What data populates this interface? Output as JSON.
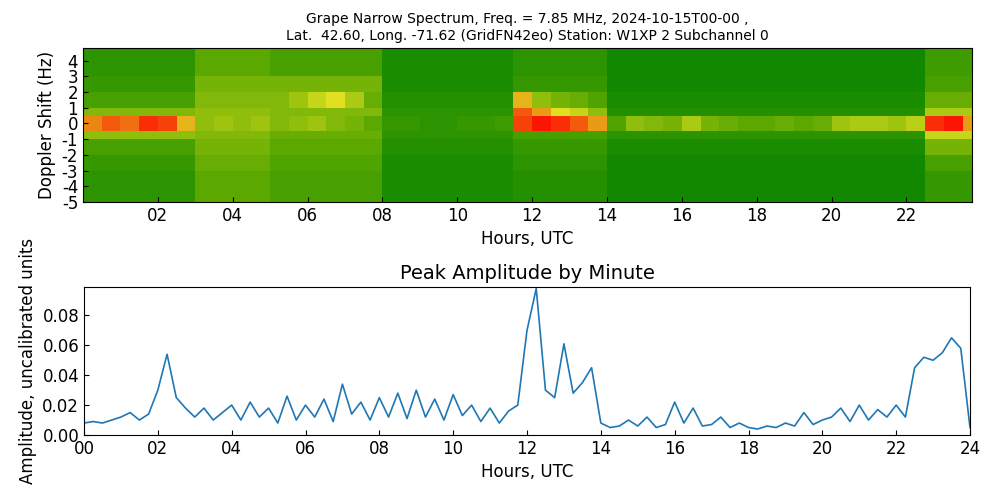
{
  "chart_data": [
    {
      "type": "heatmap",
      "title": "Grape Narrow Spectrum, Freq. = 7.85 MHz, 2024-10-15T00-00 ,\nLat.  42.60, Long. -71.62 (GridFN42eo) Station: W1XP 2 Subchannel 0",
      "x_label": "Hours, UTC",
      "y_label": "Doppler Shift (Hz)",
      "x_edges": [
        0,
        0.5,
        1,
        1.5,
        2,
        2.5,
        3,
        3.5,
        4,
        4.5,
        5,
        5.5,
        6,
        6.5,
        7,
        7.5,
        8,
        8.5,
        9,
        9.5,
        10,
        10.5,
        11,
        11.5,
        12,
        12.5,
        13,
        13.5,
        14,
        14.5,
        15,
        15.5,
        16,
        16.5,
        17,
        17.5,
        18,
        18.5,
        19,
        19.5,
        20,
        20.5,
        21,
        21.5,
        22,
        22.5,
        23,
        23.5,
        23.75
      ],
      "y_edges": [
        -5,
        -3,
        -2,
        -1,
        -0.5,
        0.5,
        1,
        2,
        3,
        5
      ],
      "cells": [
        [
          0.5,
          0.5,
          0.5,
          0.5,
          0.5,
          0.5,
          1.0,
          1.0,
          1.0,
          1.0,
          0.8,
          0.8,
          0.8,
          0.8,
          0.8,
          0.8,
          0.3,
          0.3,
          0.3,
          0.3,
          0.3,
          0.3,
          0.3,
          0.4,
          0.4,
          0.4,
          0.4,
          0.4,
          0.2,
          0.2,
          0.2,
          0.2,
          0.2,
          0.2,
          0.2,
          0.2,
          0.2,
          0.2,
          0.2,
          0.2,
          0.2,
          0.2,
          0.2,
          0.2,
          0.2,
          0.6,
          0.6,
          0.6
        ],
        [
          0.6,
          0.6,
          0.6,
          0.6,
          0.6,
          0.6,
          1.1,
          1.1,
          1.1,
          1.1,
          0.9,
          0.9,
          0.9,
          0.9,
          0.9,
          0.9,
          0.3,
          0.3,
          0.3,
          0.3,
          0.3,
          0.3,
          0.3,
          0.5,
          0.5,
          0.5,
          0.5,
          0.5,
          0.2,
          0.2,
          0.2,
          0.2,
          0.2,
          0.2,
          0.2,
          0.2,
          0.2,
          0.2,
          0.2,
          0.2,
          0.2,
          0.2,
          0.2,
          0.2,
          0.2,
          0.8,
          0.8,
          0.8
        ],
        [
          0.8,
          0.8,
          0.8,
          0.8,
          0.8,
          0.8,
          1.2,
          1.2,
          1.2,
          1.2,
          1.0,
          1.0,
          1.0,
          1.0,
          1.0,
          1.0,
          0.4,
          0.4,
          0.4,
          0.4,
          0.4,
          0.4,
          0.4,
          0.6,
          0.6,
          0.6,
          0.6,
          0.6,
          0.3,
          0.3,
          0.3,
          0.3,
          0.3,
          0.3,
          0.3,
          0.3,
          0.3,
          0.3,
          0.3,
          0.3,
          0.3,
          0.3,
          0.3,
          0.3,
          0.3,
          1.2,
          1.2,
          1.2
        ],
        [
          1.4,
          1.4,
          1.4,
          1.4,
          1.4,
          1.4,
          1.3,
          1.3,
          1.3,
          1.3,
          1.1,
          1.1,
          1.1,
          1.1,
          1.1,
          1.1,
          0.5,
          0.5,
          0.5,
          0.5,
          0.5,
          0.5,
          0.5,
          0.8,
          0.8,
          0.8,
          0.8,
          0.8,
          0.5,
          0.5,
          0.5,
          0.5,
          0.5,
          0.5,
          0.5,
          0.5,
          0.5,
          0.5,
          0.5,
          0.5,
          0.5,
          0.5,
          0.5,
          0.5,
          0.5,
          1.8,
          1.8,
          1.8
        ],
        [
          2.4,
          2.6,
          2.5,
          2.8,
          2.7,
          2.2,
          1.4,
          1.5,
          1.4,
          1.5,
          1.3,
          1.4,
          1.5,
          1.3,
          1.2,
          1.0,
          0.6,
          0.6,
          0.5,
          0.5,
          0.6,
          0.6,
          0.7,
          2.7,
          2.9,
          2.8,
          2.6,
          2.3,
          0.9,
          1.4,
          1.3,
          1.2,
          1.6,
          1.2,
          1.1,
          1.0,
          1.0,
          1.1,
          1.0,
          1.1,
          1.5,
          1.6,
          1.6,
          1.5,
          1.7,
          2.8,
          2.9,
          2.3
        ],
        [
          1.3,
          1.3,
          1.3,
          1.3,
          1.3,
          1.3,
          1.4,
          1.4,
          1.4,
          1.4,
          1.3,
          1.3,
          1.3,
          1.3,
          1.3,
          1.3,
          0.5,
          0.5,
          0.5,
          0.5,
          0.5,
          0.5,
          0.5,
          2.6,
          2.3,
          2.0,
          1.8,
          1.4,
          0.4,
          0.4,
          0.4,
          0.4,
          0.4,
          0.4,
          0.4,
          0.4,
          0.4,
          0.4,
          0.4,
          0.4,
          0.4,
          0.4,
          0.4,
          0.4,
          0.4,
          1.6,
          1.6,
          1.6
        ],
        [
          0.8,
          0.8,
          0.8,
          0.8,
          0.8,
          0.8,
          1.3,
          1.3,
          1.3,
          1.3,
          1.3,
          1.5,
          1.8,
          2.0,
          1.6,
          1.1,
          0.4,
          0.4,
          0.4,
          0.4,
          0.4,
          0.4,
          0.4,
          2.2,
          1.4,
          1.2,
          1.1,
          0.9,
          0.3,
          0.3,
          0.3,
          0.3,
          0.3,
          0.3,
          0.3,
          0.3,
          0.3,
          0.3,
          0.3,
          0.3,
          0.3,
          0.3,
          0.3,
          0.3,
          0.3,
          1.1,
          1.1,
          1.1
        ],
        [
          0.6,
          0.6,
          0.6,
          0.6,
          0.6,
          0.6,
          1.2,
          1.2,
          1.2,
          1.2,
          1.2,
          1.2,
          1.2,
          1.2,
          1.2,
          1.2,
          0.3,
          0.3,
          0.3,
          0.3,
          0.3,
          0.3,
          0.3,
          0.6,
          0.6,
          0.6,
          0.6,
          0.6,
          0.2,
          0.2,
          0.2,
          0.2,
          0.2,
          0.2,
          0.2,
          0.2,
          0.2,
          0.2,
          0.2,
          0.2,
          0.2,
          0.2,
          0.2,
          0.2,
          0.2,
          0.8,
          0.8,
          0.8
        ],
        [
          0.5,
          0.5,
          0.5,
          0.5,
          0.5,
          0.5,
          1.0,
          1.0,
          1.0,
          1.0,
          0.8,
          0.8,
          0.8,
          0.8,
          0.8,
          0.8,
          0.3,
          0.3,
          0.3,
          0.3,
          0.3,
          0.3,
          0.3,
          0.5,
          0.5,
          0.5,
          0.5,
          0.5,
          0.2,
          0.2,
          0.2,
          0.2,
          0.2,
          0.2,
          0.2,
          0.2,
          0.2,
          0.2,
          0.2,
          0.2,
          0.2,
          0.2,
          0.2,
          0.2,
          0.2,
          0.7,
          0.7,
          0.7
        ]
      ],
      "value_range": [
        0,
        3
      ],
      "colors": [
        "#008000",
        "#5aa800",
        "#e0e020",
        "#ff0000"
      ],
      "xlim": [
        0,
        23.75
      ],
      "ylim": [
        -5,
        4.8
      ],
      "xticks": [
        {
          "value": 2,
          "label": "02"
        },
        {
          "value": 4,
          "label": "04"
        },
        {
          "value": 6,
          "label": "06"
        },
        {
          "value": 8,
          "label": "08"
        },
        {
          "value": 10,
          "label": "10"
        },
        {
          "value": 12,
          "label": "12"
        },
        {
          "value": 14,
          "label": "14"
        },
        {
          "value": 16,
          "label": "16"
        },
        {
          "value": 18,
          "label": "18"
        },
        {
          "value": 20,
          "label": "20"
        },
        {
          "value": 22,
          "label": "22"
        }
      ],
      "yticks": [
        -5,
        -4,
        -3,
        -2,
        -1,
        0,
        1,
        2,
        3,
        4
      ]
    },
    {
      "type": "line",
      "title": "Peak Amplitude by Minute",
      "x_label": "Hours, UTC",
      "y_label": "Amplitude, uncalibrated units",
      "x": [
        0,
        0.25,
        0.5,
        0.75,
        1,
        1.25,
        1.5,
        1.75,
        2,
        2.25,
        2.5,
        2.75,
        3,
        3.25,
        3.5,
        3.75,
        4,
        4.25,
        4.5,
        4.75,
        5,
        5.25,
        5.5,
        5.75,
        6,
        6.25,
        6.5,
        6.75,
        7,
        7.25,
        7.5,
        7.75,
        8,
        8.25,
        8.5,
        8.75,
        9,
        9.25,
        9.5,
        9.75,
        10,
        10.25,
        10.5,
        10.75,
        11,
        11.25,
        11.5,
        11.75,
        12,
        12.25,
        12.5,
        12.75,
        13,
        13.25,
        13.5,
        13.75,
        14,
        14.25,
        14.5,
        14.75,
        15,
        15.25,
        15.5,
        15.75,
        16,
        16.25,
        16.5,
        16.75,
        17,
        17.25,
        17.5,
        17.75,
        18,
        18.25,
        18.5,
        18.75,
        19,
        19.25,
        19.5,
        19.75,
        20,
        20.25,
        20.5,
        20.75,
        21,
        21.25,
        21.5,
        21.75,
        22,
        22.25,
        22.5,
        22.75,
        23,
        23.25,
        23.5,
        23.75,
        24
      ],
      "series": [
        {
          "color": "#1f77b4",
          "values": [
            0.008,
            0.009,
            0.008,
            0.01,
            0.012,
            0.015,
            0.01,
            0.014,
            0.03,
            0.054,
            0.025,
            0.018,
            0.012,
            0.018,
            0.01,
            0.015,
            0.02,
            0.01,
            0.022,
            0.012,
            0.018,
            0.008,
            0.026,
            0.01,
            0.02,
            0.012,
            0.024,
            0.009,
            0.034,
            0.014,
            0.022,
            0.01,
            0.025,
            0.012,
            0.028,
            0.011,
            0.03,
            0.012,
            0.024,
            0.01,
            0.027,
            0.013,
            0.02,
            0.009,
            0.018,
            0.008,
            0.016,
            0.02,
            0.07,
            0.098,
            0.03,
            0.025,
            0.061,
            0.028,
            0.035,
            0.045,
            0.008,
            0.005,
            0.006,
            0.01,
            0.006,
            0.012,
            0.005,
            0.007,
            0.022,
            0.008,
            0.018,
            0.006,
            0.007,
            0.012,
            0.005,
            0.008,
            0.005,
            0.004,
            0.006,
            0.005,
            0.008,
            0.006,
            0.015,
            0.007,
            0.01,
            0.012,
            0.018,
            0.009,
            0.02,
            0.01,
            0.017,
            0.012,
            0.02,
            0.012,
            0.045,
            0.052,
            0.05,
            0.055,
            0.065,
            0.058,
            0.005
          ]
        }
      ],
      "xlim": [
        0,
        24
      ],
      "ylim": [
        0,
        0.099
      ],
      "xticks": [
        {
          "value": 0,
          "label": "00"
        },
        {
          "value": 2,
          "label": "02"
        },
        {
          "value": 4,
          "label": "04"
        },
        {
          "value": 6,
          "label": "06"
        },
        {
          "value": 8,
          "label": "08"
        },
        {
          "value": 10,
          "label": "10"
        },
        {
          "value": 12,
          "label": "12"
        },
        {
          "value": 14,
          "label": "14"
        },
        {
          "value": 16,
          "label": "16"
        },
        {
          "value": 18,
          "label": "18"
        },
        {
          "value": 20,
          "label": "20"
        },
        {
          "value": 22,
          "label": "22"
        },
        {
          "value": 24,
          "label": "24"
        }
      ],
      "yticks": [
        {
          "value": 0,
          "label": "0.00"
        },
        {
          "value": 0.02,
          "label": "0.02"
        },
        {
          "value": 0.04,
          "label": "0.04"
        },
        {
          "value": 0.06,
          "label": "0.06"
        },
        {
          "value": 0.08,
          "label": "0.08"
        }
      ]
    }
  ]
}
